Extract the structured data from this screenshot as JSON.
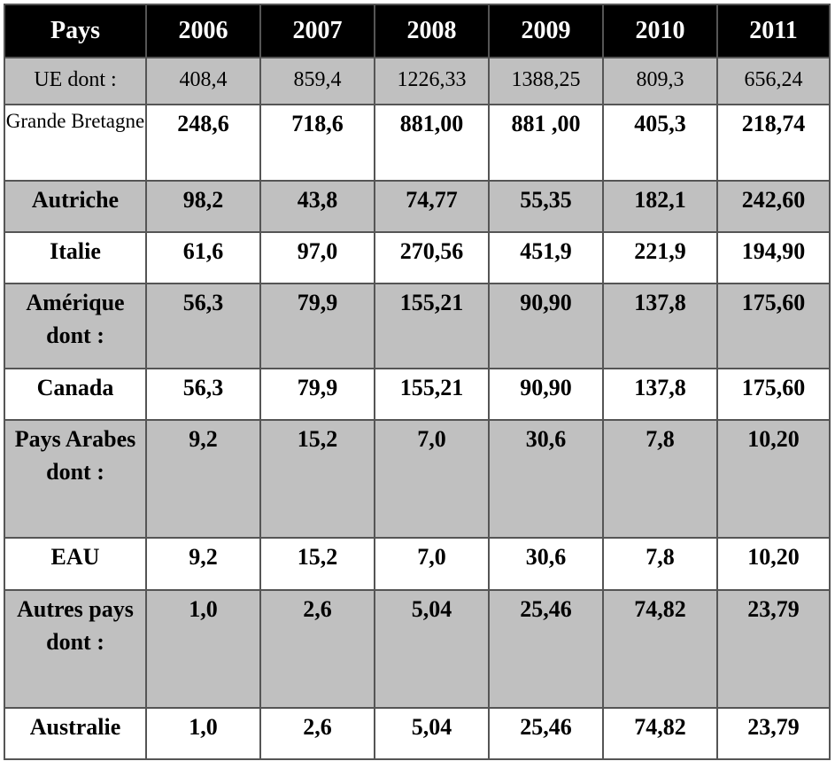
{
  "table": {
    "headers": [
      "Pays",
      "2006",
      "2007",
      "2008",
      "2009",
      "2010",
      "2011"
    ],
    "rows": [
      {
        "country": "UE dont :",
        "values": [
          "408,4",
          "859,4",
          "1226,33",
          "1388,25",
          "809,3",
          "656,24"
        ]
      },
      {
        "country": "Grande Bretagne",
        "values": [
          "248,6",
          "718,6",
          "881,00",
          "881 ,00",
          "405,3",
          "218,74"
        ]
      },
      {
        "country": "Autriche",
        "values": [
          "98,2",
          "43,8",
          "74,77",
          "55,35",
          "182,1",
          "242,60"
        ]
      },
      {
        "country": "Italie",
        "values": [
          "61,6",
          "97,0",
          "270,56",
          "451,9",
          "221,9",
          "194,90"
        ]
      },
      {
        "country": "Amérique dont :",
        "values": [
          "56,3",
          "79,9",
          "155,21",
          "90,90",
          "137,8",
          "175,60"
        ]
      },
      {
        "country": "Canada",
        "values": [
          "56,3",
          "79,9",
          "155,21",
          "90,90",
          "137,8",
          "175,60"
        ]
      },
      {
        "country": "Pays Arabes dont :",
        "values": [
          "9,2",
          "15,2",
          "7,0",
          "30,6",
          "7,8",
          "10,20"
        ]
      },
      {
        "country": "EAU",
        "values": [
          "9,2",
          "15,2",
          "7,0",
          "30,6",
          "7,8",
          "10,20"
        ]
      },
      {
        "country": "Autres pays dont :",
        "values": [
          "1,0",
          "2,6",
          "5,04",
          "25,46",
          "74,82",
          "23,79"
        ]
      },
      {
        "country": "Australie",
        "values": [
          "1,0",
          "2,6",
          "5,04",
          "25,46",
          "74,82",
          "23,79"
        ]
      }
    ]
  }
}
